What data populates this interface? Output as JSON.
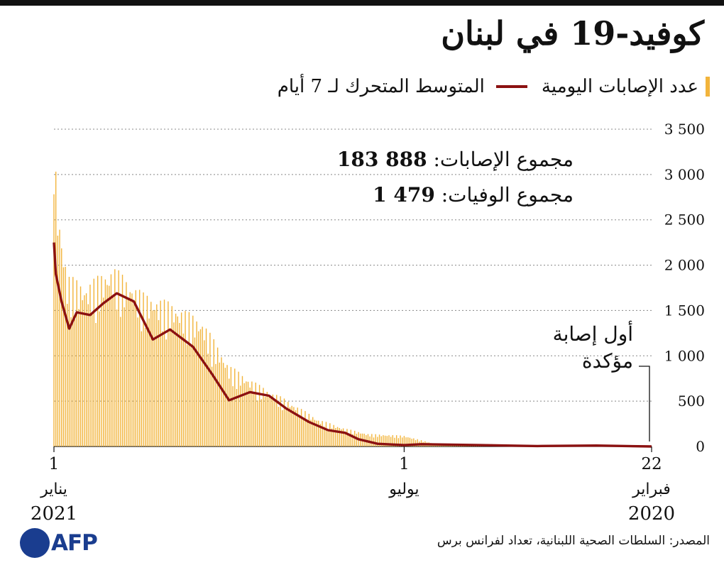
{
  "header": {
    "title": "كوفيد-19 في لبنان",
    "legend": {
      "bars_label": "عدد الإصابات اليومية",
      "line_label": "المتوسط المتحرك لـ 7 أيام"
    }
  },
  "totals": {
    "cases_label": "مجموع الإصابات:",
    "cases_value": "183 888",
    "deaths_label": "مجموع الوفيات:",
    "deaths_value": "1 479"
  },
  "annotation": {
    "line1": "أول إصابة",
    "line2": "مؤكدة"
  },
  "source": "المصدر: السلطات الصحية اللبنانية، تعداد لفرانس برس",
  "logo": {
    "text": "AFP"
  },
  "colors": {
    "bars": "#f2b43b",
    "line": "#8b1111",
    "logo": "#1a3d8f"
  },
  "chart_data": {
    "type": "bar",
    "x_direction": "reversed (time runs right to left)",
    "y_axis_side": "right",
    "ylim": [
      0,
      3500
    ],
    "y_ticks": [
      {
        "value": 0,
        "label": "0"
      },
      {
        "value": 500,
        "label": "500"
      },
      {
        "value": 1000,
        "label": "1 000"
      },
      {
        "value": 1500,
        "label": "1 500"
      },
      {
        "value": 2000,
        "label": "2 000"
      },
      {
        "value": 2500,
        "label": "2 500"
      },
      {
        "value": 3000,
        "label": "3 000"
      },
      {
        "value": 3500,
        "label": "3 500"
      }
    ],
    "grid": true,
    "x_range": [
      "2020-02-22",
      "2021-01-01"
    ],
    "x_ticks": [
      {
        "date": "2020-02-22",
        "num": "22",
        "month": "فبراير",
        "year": "2020"
      },
      {
        "date": "2020-07-01",
        "num": "1",
        "month": "يوليو",
        "year": ""
      },
      {
        "date": "2021-01-01",
        "num": "1",
        "month": "يناير",
        "year": "2021"
      }
    ],
    "series": [
      {
        "name": "المتوسط المتحرك لـ 7 أيام",
        "kind": "line",
        "points": [
          [
            "2020-02-22",
            0
          ],
          [
            "2020-03-22",
            10
          ],
          [
            "2020-04-22",
            5
          ],
          [
            "2020-05-22",
            15
          ],
          [
            "2020-06-22",
            25
          ],
          [
            "2020-07-01",
            15
          ],
          [
            "2020-07-15",
            30
          ],
          [
            "2020-07-25",
            80
          ],
          [
            "2020-08-01",
            150
          ],
          [
            "2020-08-10",
            180
          ],
          [
            "2020-08-20",
            270
          ],
          [
            "2020-09-01",
            420
          ],
          [
            "2020-09-10",
            560
          ],
          [
            "2020-09-20",
            600
          ],
          [
            "2020-10-01",
            510
          ],
          [
            "2020-10-10",
            800
          ],
          [
            "2020-10-20",
            1100
          ],
          [
            "2020-11-01",
            1290
          ],
          [
            "2020-11-10",
            1180
          ],
          [
            "2020-11-20",
            1600
          ],
          [
            "2020-11-29",
            1690
          ],
          [
            "2020-12-06",
            1580
          ],
          [
            "2020-12-13",
            1450
          ],
          [
            "2020-12-20",
            1480
          ],
          [
            "2020-12-24",
            1300
          ],
          [
            "2020-12-28",
            1600
          ],
          [
            "2020-12-31",
            1900
          ],
          [
            "2021-01-01",
            2250
          ]
        ]
      },
      {
        "name": "عدد الإصابات اليومية",
        "kind": "bars",
        "points": [
          [
            "2020-02-22",
            1
          ],
          [
            "2020-03-15",
            20
          ],
          [
            "2020-04-15",
            10
          ],
          [
            "2020-05-15",
            25
          ],
          [
            "2020-06-15",
            30
          ],
          [
            "2020-07-01",
            120
          ],
          [
            "2020-07-20",
            140
          ],
          [
            "2020-08-01",
            200
          ],
          [
            "2020-08-15",
            300
          ],
          [
            "2020-09-01",
            520
          ],
          [
            "2020-09-15",
            680
          ],
          [
            "2020-10-01",
            900
          ],
          [
            "2020-10-15",
            1400
          ],
          [
            "2020-11-01",
            1600
          ],
          [
            "2020-11-15",
            1700
          ],
          [
            "2020-12-01",
            2000
          ],
          [
            "2020-12-15",
            1800
          ],
          [
            "2020-12-25",
            1900
          ],
          [
            "2020-12-30",
            2700
          ],
          [
            "2021-01-01",
            3500
          ]
        ]
      }
    ]
  }
}
